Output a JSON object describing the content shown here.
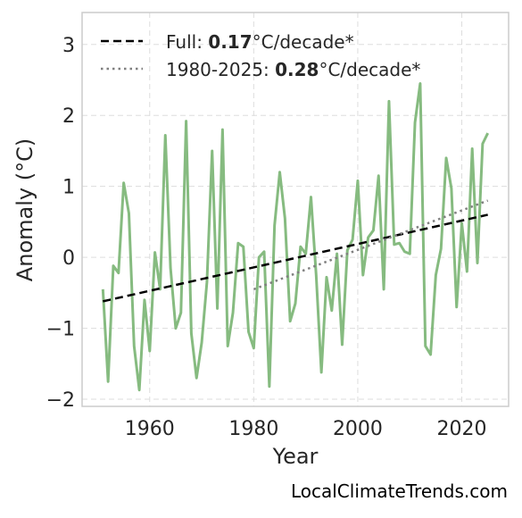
{
  "chart_data": {
    "type": "line",
    "xlabel": "Year",
    "ylabel": "Anomaly (°C)",
    "xlim": [
      1947,
      2029
    ],
    "ylim": [
      -2.1,
      3.45
    ],
    "xticks": [
      1960,
      1980,
      2000,
      2020
    ],
    "yticks": [
      -2,
      -1,
      0,
      1,
      2,
      3
    ],
    "ytick_labels": [
      "−2",
      "−1",
      "0",
      "1",
      "2",
      "3"
    ],
    "grid": true,
    "legend_position": "top-left",
    "colors": {
      "series": "#86bb80",
      "trend_full": "#000000",
      "trend_recent": "#808080",
      "grid": "#dddddd",
      "frame": "#cccccc"
    },
    "series": [
      {
        "x": [
          1951,
          1952,
          1953,
          1954,
          1955,
          1956,
          1957,
          1958,
          1959,
          1960,
          1961,
          1962,
          1963,
          1964,
          1965,
          1966,
          1967,
          1968,
          1969,
          1970,
          1971,
          1972,
          1973,
          1974,
          1975,
          1976,
          1977,
          1978,
          1979,
          1980,
          1981,
          1982,
          1983,
          1984,
          1985,
          1986,
          1987,
          1988,
          1989,
          1990,
          1991,
          1992,
          1993,
          1994,
          1995,
          1996,
          1997,
          1998,
          1999,
          2000,
          2001,
          2002,
          2003,
          2004,
          2005,
          2006,
          2007,
          2008,
          2009,
          2010,
          2011,
          2012,
          2013,
          2014,
          2015,
          2016,
          2017,
          2018,
          2019,
          2020,
          2021,
          2022,
          2023,
          2024,
          2025
        ],
        "values": [
          -0.45,
          -1.75,
          -0.12,
          -0.22,
          1.05,
          0.62,
          -1.25,
          -1.87,
          -0.6,
          -1.32,
          0.07,
          -0.45,
          1.72,
          -0.15,
          -1.0,
          -0.78,
          1.92,
          -1.07,
          -1.7,
          -1.2,
          -0.35,
          1.5,
          -0.72,
          1.8,
          -1.25,
          -0.78,
          0.2,
          0.15,
          -1.05,
          -1.28,
          0.0,
          0.08,
          -1.82,
          0.45,
          1.2,
          0.55,
          -0.9,
          -0.65,
          0.15,
          0.05,
          0.85,
          -0.25,
          -1.62,
          -0.28,
          -0.75,
          0.05,
          -1.23,
          0.1,
          0.25,
          1.08,
          -0.25,
          0.28,
          0.38,
          1.15,
          -0.45,
          2.2,
          0.18,
          0.2,
          0.08,
          0.05,
          1.9,
          2.45,
          -1.25,
          -1.37,
          -0.25,
          0.12,
          1.4,
          0.97,
          -0.7,
          0.48,
          -0.2,
          1.53,
          -0.08,
          1.6,
          1.75
        ]
      }
    ],
    "trends": [
      {
        "label_prefix": "Full: ",
        "value": "0.17",
        "label_suffix": "°C/decade*",
        "style": "dashed",
        "x": [
          1951,
          2025
        ],
        "y": [
          -0.62,
          0.6
        ]
      },
      {
        "label_prefix": "1980-2025: ",
        "value": "0.28",
        "label_suffix": "°C/decade*",
        "style": "dotted",
        "x": [
          1980,
          2025
        ],
        "y": [
          -0.45,
          0.8
        ]
      }
    ]
  },
  "credit": "LocalClimateTrends.com"
}
